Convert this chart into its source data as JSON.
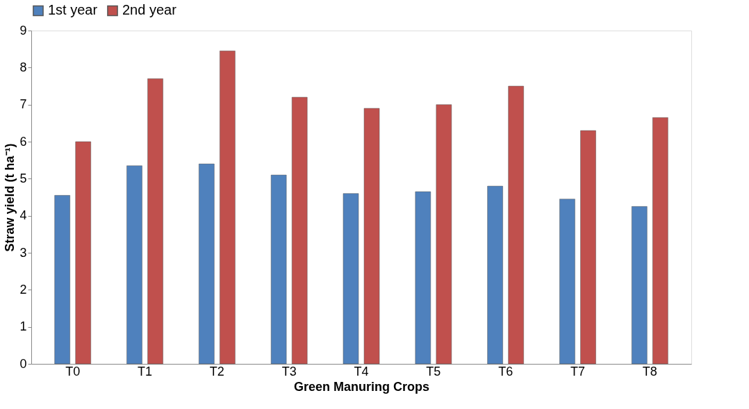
{
  "chart_data": {
    "type": "bar",
    "xlabel": "Green Manuring Crops",
    "ylabel": "Straw yield (t ha⁻¹)",
    "categories": [
      "T0",
      "T1",
      "T2",
      "T3",
      "T4",
      "T5",
      "T6",
      "T7",
      "T8"
    ],
    "series": [
      {
        "name": "1st year",
        "color": "#4f81bd",
        "values": [
          4.55,
          5.35,
          5.4,
          5.1,
          4.6,
          4.65,
          4.8,
          4.45,
          4.25
        ]
      },
      {
        "name": "2nd year",
        "color": "#c0504d",
        "values": [
          6.0,
          7.7,
          8.45,
          7.2,
          6.9,
          7.0,
          7.5,
          6.3,
          6.65
        ]
      }
    ],
    "ylim": [
      0,
      9
    ],
    "yticks": [
      0,
      1,
      2,
      3,
      4,
      5,
      6,
      7,
      8,
      9
    ],
    "legend": "top",
    "grid": false
  }
}
